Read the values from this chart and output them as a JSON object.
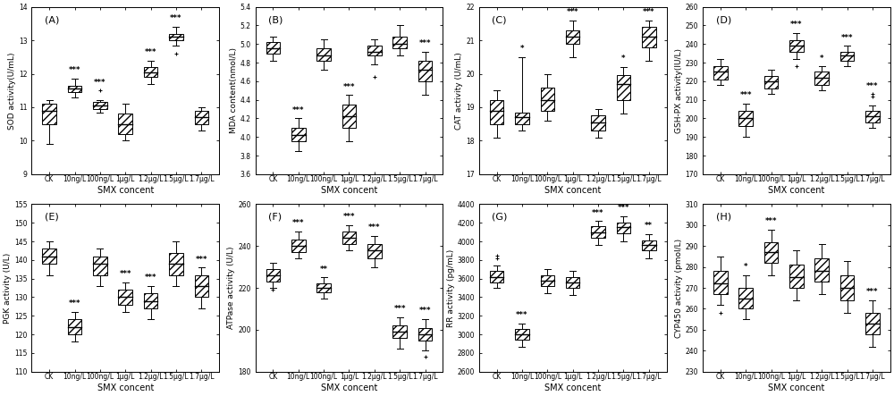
{
  "panels": [
    {
      "label": "(A)",
      "ylabel": "SOD activity(U/mL)",
      "xlabel": "SMX concent",
      "ylim": [
        9,
        14
      ],
      "yticks": [
        9,
        10,
        11,
        12,
        13,
        14
      ],
      "boxes": [
        {
          "med": 10.9,
          "q1": 10.5,
          "q3": 11.1,
          "whislo": 9.9,
          "whishi": 11.2,
          "fliers": [],
          "sig": ""
        },
        {
          "med": 11.55,
          "q1": 11.45,
          "q3": 11.65,
          "whislo": 11.3,
          "whishi": 11.85,
          "fliers": [],
          "sig": "***"
        },
        {
          "med": 11.05,
          "q1": 10.95,
          "q3": 11.15,
          "whislo": 10.85,
          "whishi": 11.2,
          "fliers": [
            11.5
          ],
          "sig": "***"
        },
        {
          "med": 10.5,
          "q1": 10.2,
          "q3": 10.8,
          "whislo": 10.0,
          "whishi": 11.1,
          "fliers": [],
          "sig": ""
        },
        {
          "med": 12.05,
          "q1": 11.9,
          "q3": 12.2,
          "whislo": 11.7,
          "whishi": 12.4,
          "fliers": [],
          "sig": "***"
        },
        {
          "med": 13.1,
          "q1": 13.0,
          "q3": 13.2,
          "whislo": 12.85,
          "whishi": 13.4,
          "fliers": [
            12.6
          ],
          "sig": "***"
        },
        {
          "med": 10.7,
          "q1": 10.5,
          "q3": 10.9,
          "whislo": 10.3,
          "whishi": 11.0,
          "fliers": [],
          "sig": ""
        }
      ]
    },
    {
      "label": "(B)",
      "ylabel": "MDA content(nmol/L)",
      "xlabel": "SMX concent",
      "ylim": [
        3.6,
        5.4
      ],
      "yticks": [
        3.6,
        3.8,
        4.0,
        4.2,
        4.4,
        4.6,
        4.8,
        5.0,
        5.2,
        5.4
      ],
      "boxes": [
        {
          "med": 4.95,
          "q1": 4.9,
          "q3": 5.02,
          "whislo": 4.82,
          "whishi": 5.08,
          "fliers": [],
          "sig": ""
        },
        {
          "med": 4.02,
          "q1": 3.95,
          "q3": 4.1,
          "whislo": 3.85,
          "whishi": 4.2,
          "fliers": [],
          "sig": "***"
        },
        {
          "med": 4.88,
          "q1": 4.82,
          "q3": 4.95,
          "whislo": 4.72,
          "whishi": 5.05,
          "fliers": [],
          "sig": ""
        },
        {
          "med": 4.22,
          "q1": 4.1,
          "q3": 4.35,
          "whislo": 3.95,
          "whishi": 4.45,
          "fliers": [],
          "sig": "***"
        },
        {
          "med": 4.92,
          "q1": 4.88,
          "q3": 4.98,
          "whislo": 4.78,
          "whishi": 5.05,
          "fliers": [
            4.65
          ],
          "sig": ""
        },
        {
          "med": 5.0,
          "q1": 4.95,
          "q3": 5.08,
          "whislo": 4.88,
          "whishi": 5.2,
          "fliers": [],
          "sig": ""
        },
        {
          "med": 4.72,
          "q1": 4.6,
          "q3": 4.82,
          "whislo": 4.45,
          "whishi": 4.92,
          "fliers": [],
          "sig": "***"
        }
      ]
    },
    {
      "label": "(C)",
      "ylabel": "CAT activity (U/mL)",
      "xlabel": "SMX concent",
      "ylim": [
        17,
        22
      ],
      "yticks": [
        17,
        18,
        19,
        20,
        21,
        22
      ],
      "boxes": [
        {
          "med": 18.9,
          "q1": 18.5,
          "q3": 19.2,
          "whislo": 18.1,
          "whishi": 19.5,
          "fliers": [],
          "sig": ""
        },
        {
          "med": 18.7,
          "q1": 18.5,
          "q3": 18.85,
          "whislo": 18.3,
          "whishi": 20.5,
          "fliers": [],
          "sig": "*"
        },
        {
          "med": 19.2,
          "q1": 18.9,
          "q3": 19.6,
          "whislo": 18.6,
          "whishi": 20.0,
          "fliers": [],
          "sig": ""
        },
        {
          "med": 21.1,
          "q1": 20.9,
          "q3": 21.3,
          "whislo": 20.5,
          "whishi": 21.6,
          "fliers": [],
          "sig": "***"
        },
        {
          "med": 18.55,
          "q1": 18.3,
          "q3": 18.75,
          "whislo": 18.1,
          "whishi": 18.95,
          "fliers": [],
          "sig": ""
        },
        {
          "med": 19.7,
          "q1": 19.2,
          "q3": 19.95,
          "whislo": 18.8,
          "whishi": 20.2,
          "fliers": [],
          "sig": "*"
        },
        {
          "med": 21.1,
          "q1": 20.8,
          "q3": 21.4,
          "whislo": 20.4,
          "whishi": 21.6,
          "fliers": [],
          "sig": "***"
        }
      ]
    },
    {
      "label": "(D)",
      "ylabel": "GSH-PX activity(IU/L)",
      "xlabel": "SMX concent",
      "ylim": [
        170,
        260
      ],
      "yticks": [
        170,
        180,
        190,
        200,
        210,
        220,
        230,
        240,
        250,
        260
      ],
      "boxes": [
        {
          "med": 225,
          "q1": 221,
          "q3": 228,
          "whislo": 218,
          "whishi": 232,
          "fliers": [],
          "sig": ""
        },
        {
          "med": 200,
          "q1": 196,
          "q3": 204,
          "whislo": 190,
          "whishi": 208,
          "fliers": [],
          "sig": "***"
        },
        {
          "med": 220,
          "q1": 216,
          "q3": 223,
          "whislo": 213,
          "whishi": 226,
          "fliers": [],
          "sig": ""
        },
        {
          "med": 239,
          "q1": 236,
          "q3": 242,
          "whislo": 232,
          "whishi": 246,
          "fliers": [
            228
          ],
          "sig": "***"
        },
        {
          "med": 222,
          "q1": 218,
          "q3": 225,
          "whislo": 215,
          "whishi": 228,
          "fliers": [],
          "sig": "*"
        },
        {
          "med": 234,
          "q1": 231,
          "q3": 236,
          "whislo": 228,
          "whishi": 239,
          "fliers": [],
          "sig": "***"
        },
        {
          "med": 201,
          "q1": 198,
          "q3": 204,
          "whislo": 195,
          "whishi": 207,
          "fliers": [
            212,
            213
          ],
          "sig": "***"
        }
      ]
    },
    {
      "label": "(E)",
      "ylabel": "PGK activity (U/L)",
      "xlabel": "SMX concent",
      "ylim": [
        110,
        155
      ],
      "yticks": [
        110,
        115,
        120,
        125,
        130,
        135,
        140,
        145,
        150,
        155
      ],
      "boxes": [
        {
          "med": 141,
          "q1": 139,
          "q3": 143,
          "whislo": 136,
          "whishi": 145,
          "fliers": [],
          "sig": ""
        },
        {
          "med": 122,
          "q1": 120,
          "q3": 124,
          "whislo": 118,
          "whishi": 126,
          "fliers": [],
          "sig": "***"
        },
        {
          "med": 139,
          "q1": 136,
          "q3": 141,
          "whislo": 133,
          "whishi": 143,
          "fliers": [],
          "sig": ""
        },
        {
          "med": 130,
          "q1": 128,
          "q3": 132,
          "whislo": 126,
          "whishi": 134,
          "fliers": [],
          "sig": "***"
        },
        {
          "med": 129,
          "q1": 127,
          "q3": 131,
          "whislo": 124,
          "whishi": 133,
          "fliers": [],
          "sig": "***"
        },
        {
          "med": 139,
          "q1": 136,
          "q3": 142,
          "whislo": 133,
          "whishi": 145,
          "fliers": [],
          "sig": ""
        },
        {
          "med": 133,
          "q1": 130,
          "q3": 136,
          "whislo": 127,
          "whishi": 138,
          "fliers": [],
          "sig": "***"
        }
      ]
    },
    {
      "label": "(F)",
      "ylabel": "ATPase activity (U/L)",
      "xlabel": "SMX concent",
      "ylim": [
        180,
        260
      ],
      "yticks": [
        180,
        200,
        220,
        240,
        260
      ],
      "boxes": [
        {
          "med": 226,
          "q1": 223,
          "q3": 229,
          "whislo": 220,
          "whishi": 232,
          "fliers": [
            219
          ],
          "sig": ""
        },
        {
          "med": 240,
          "q1": 237,
          "q3": 243,
          "whislo": 234,
          "whishi": 247,
          "fliers": [],
          "sig": "***"
        },
        {
          "med": 220,
          "q1": 218,
          "q3": 222,
          "whislo": 215,
          "whishi": 225,
          "fliers": [],
          "sig": "**"
        },
        {
          "med": 244,
          "q1": 241,
          "q3": 247,
          "whislo": 238,
          "whishi": 250,
          "fliers": [],
          "sig": "***"
        },
        {
          "med": 238,
          "q1": 234,
          "q3": 241,
          "whislo": 230,
          "whishi": 245,
          "fliers": [],
          "sig": "***"
        },
        {
          "med": 199,
          "q1": 196,
          "q3": 202,
          "whislo": 191,
          "whishi": 206,
          "fliers": [],
          "sig": "***"
        },
        {
          "med": 198,
          "q1": 195,
          "q3": 201,
          "whislo": 190,
          "whishi": 205,
          "fliers": [
            187
          ],
          "sig": "***"
        }
      ]
    },
    {
      "label": "(G)",
      "ylabel": "RR activity (pg/mL)",
      "xlabel": "SMX concent",
      "ylim": [
        2600,
        4400
      ],
      "yticks": [
        2600,
        2800,
        3000,
        3200,
        3400,
        3600,
        3800,
        4000,
        4200,
        4400
      ],
      "boxes": [
        {
          "med": 3620,
          "q1": 3560,
          "q3": 3680,
          "whislo": 3500,
          "whishi": 3740,
          "fliers": [
            3820,
            3850
          ],
          "sig": ""
        },
        {
          "med": 3000,
          "q1": 2940,
          "q3": 3060,
          "whislo": 2870,
          "whishi": 3120,
          "fliers": [],
          "sig": "***"
        },
        {
          "med": 3580,
          "q1": 3520,
          "q3": 3640,
          "whislo": 3440,
          "whishi": 3700,
          "fliers": [],
          "sig": ""
        },
        {
          "med": 3560,
          "q1": 3500,
          "q3": 3620,
          "whislo": 3420,
          "whishi": 3680,
          "fliers": [],
          "sig": ""
        },
        {
          "med": 4100,
          "q1": 4040,
          "q3": 4160,
          "whislo": 3960,
          "whishi": 4220,
          "fliers": [],
          "sig": "***"
        },
        {
          "med": 4150,
          "q1": 4090,
          "q3": 4200,
          "whislo": 4000,
          "whishi": 4270,
          "fliers": [],
          "sig": "***"
        },
        {
          "med": 3960,
          "q1": 3900,
          "q3": 4010,
          "whislo": 3820,
          "whishi": 4080,
          "fliers": [],
          "sig": "**"
        }
      ]
    },
    {
      "label": "(H)",
      "ylabel": "CYP450 activity (pmol/L)",
      "xlabel": "SMX concent",
      "ylim": [
        230,
        310
      ],
      "yticks": [
        230,
        240,
        250,
        260,
        270,
        280,
        290,
        300,
        310
      ],
      "boxes": [
        {
          "med": 272,
          "q1": 267,
          "q3": 278,
          "whislo": 262,
          "whishi": 285,
          "fliers": [
            258
          ],
          "sig": ""
        },
        {
          "med": 265,
          "q1": 260,
          "q3": 270,
          "whislo": 255,
          "whishi": 276,
          "fliers": [],
          "sig": "*"
        },
        {
          "med": 287,
          "q1": 282,
          "q3": 292,
          "whislo": 276,
          "whishi": 298,
          "fliers": [],
          "sig": "***"
        },
        {
          "med": 275,
          "q1": 270,
          "q3": 281,
          "whislo": 264,
          "whishi": 288,
          "fliers": [],
          "sig": ""
        },
        {
          "med": 278,
          "q1": 273,
          "q3": 284,
          "whislo": 267,
          "whishi": 291,
          "fliers": [],
          "sig": ""
        },
        {
          "med": 270,
          "q1": 264,
          "q3": 276,
          "whislo": 258,
          "whishi": 283,
          "fliers": [],
          "sig": ""
        },
        {
          "med": 253,
          "q1": 248,
          "q3": 258,
          "whislo": 242,
          "whishi": 264,
          "fliers": [],
          "sig": "***"
        }
      ]
    }
  ],
  "xticklabels": [
    "CK",
    "10ng/L",
    "100ng/L",
    "1μg/L",
    "1.2μg/L",
    "1.5μg/L",
    "1.7μg/L"
  ],
  "hatch_pattern": "////",
  "sig_fontsize": 6,
  "label_fontsize": 8,
  "tick_fontsize": 5.5,
  "xlabel_fontsize": 7,
  "ylabel_fontsize": 6.5
}
